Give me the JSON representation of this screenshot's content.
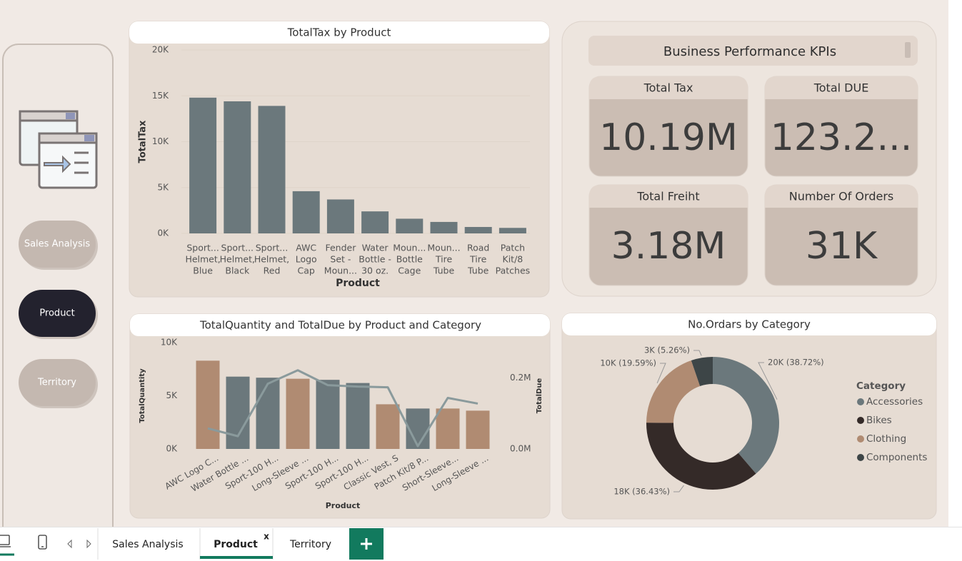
{
  "nav": {
    "buttons": [
      "Sales Analysis",
      "Product",
      "Territory"
    ],
    "active": 1
  },
  "kpis": {
    "title": "Business Performance KPIs",
    "cards": [
      {
        "label": "Total Tax",
        "value": "10.19M"
      },
      {
        "label": "Total DUE",
        "value": "123.2..."
      },
      {
        "label": "Total Freiht",
        "value": "3.18M"
      },
      {
        "label": "Number Of Orders",
        "value": "31K"
      }
    ]
  },
  "tabs": {
    "pages": [
      "Sales Analysis",
      "Product",
      "Territory"
    ],
    "active": 1,
    "close": "x"
  },
  "chart_data": [
    {
      "type": "bar",
      "title": "TotalTax by Product",
      "categories": [
        [
          "Sport...",
          "Helmet,",
          "Blue"
        ],
        [
          "Sport...",
          "Helmet,",
          "Black"
        ],
        [
          "Sport...",
          "Helmet,",
          "Red"
        ],
        [
          "AWC",
          "Logo",
          "Cap"
        ],
        [
          "Fender",
          "Set -",
          "Moun..."
        ],
        [
          "Water",
          "Bottle -",
          "30 oz."
        ],
        [
          "Moun...",
          "Bottle",
          "Cage"
        ],
        [
          "Moun...",
          "Tire",
          "Tube"
        ],
        [
          "Road",
          "Tire",
          "Tube"
        ],
        [
          "Patch",
          "Kit/8",
          "Patches"
        ]
      ],
      "values": [
        14800,
        14400,
        13900,
        4600,
        3700,
        2400,
        1600,
        1250,
        700,
        600
      ],
      "color": "#6b787c",
      "xlabel": "Product",
      "ylabel": "TotalTax",
      "ylim": [
        0,
        20000
      ],
      "yticks": [
        {
          "value": 0,
          "label": "0K"
        },
        {
          "value": 5000,
          "label": "5K"
        },
        {
          "value": 10000,
          "label": "10K"
        },
        {
          "value": 15000,
          "label": "15K"
        },
        {
          "value": 20000,
          "label": "20K"
        }
      ],
      "grid": true
    },
    {
      "type": "combo",
      "title": "TotalQuantity and TotalDue by Product and Category",
      "categories": [
        "AWC Logo C...",
        "Water Bottle ...",
        "Sport-100 H...",
        "Long-Sleeve ...",
        "Sport-100 H...",
        "Sport-100 H...",
        "Classic Vest, S",
        "Patch Kit/8 P...",
        "Short-Sleeve...",
        "Long-Sleeve ..."
      ],
      "series": [
        {
          "type": "bar",
          "colors": [
            "#b08b72",
            "#6b787c",
            "#6b787c",
            "#b08b72",
            "#6b787c",
            "#6b787c",
            "#b08b72",
            "#6b787c",
            "#b08b72",
            "#b08b72"
          ],
          "values": [
            8300,
            6800,
            6700,
            6600,
            6500,
            6200,
            4200,
            3800,
            3800,
            3600
          ]
        },
        {
          "type": "line",
          "axis": "y2",
          "color": "#8a9a9c",
          "values": [
            58000,
            36000,
            184000,
            222000,
            180000,
            176000,
            174000,
            8000,
            144000,
            128000
          ]
        }
      ],
      "xlabel": "Product",
      "ylabel": "TotalQuantity",
      "y2label": "TotalDue",
      "ylim": [
        0,
        10000
      ],
      "yticks": [
        {
          "value": 0,
          "label": "0K"
        },
        {
          "value": 5000,
          "label": "5K"
        },
        {
          "value": 10000,
          "label": "10K"
        }
      ],
      "y2lim": [
        0,
        300000
      ],
      "y2ticks": [
        {
          "value": 0,
          "label": "0.0M"
        },
        {
          "value": 200000,
          "label": "0.2M"
        }
      ],
      "grid": false
    },
    {
      "type": "donut",
      "title": "No.Ordars by Category",
      "legend_title": "Category",
      "legend": "right",
      "categories": [
        "Accessories",
        "Bikes",
        "Clothing",
        "Components"
      ],
      "values": [
        19590,
        18430,
        9910,
        2660
      ],
      "value_labels": [
        "20K (38.72%)",
        "18K (36.43%)",
        "10K (19.59%)",
        "3K (5.26%)"
      ],
      "colors": [
        "#6b787c",
        "#342a28",
        "#b08b72",
        "#3d4547"
      ]
    }
  ]
}
